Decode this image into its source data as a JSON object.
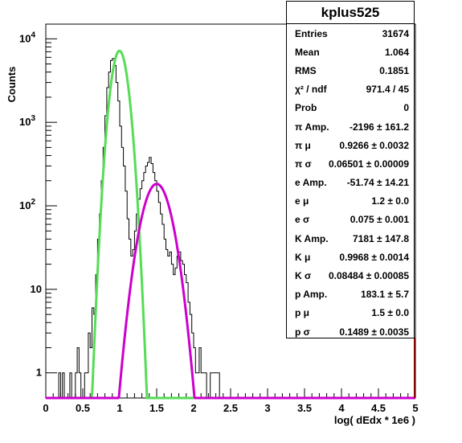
{
  "chart_data": {
    "type": "line",
    "title": "kplus525",
    "xlabel": "log( dEdx * 1e6 )",
    "ylabel": "Counts",
    "xlim": [
      0,
      5
    ],
    "ylim": [
      0.5,
      15000
    ],
    "yscale": "log",
    "x_ticks": [
      "0",
      "0.5",
      "1",
      "1.5",
      "2",
      "2.5",
      "3",
      "3.5",
      "4",
      "4.5",
      "5"
    ],
    "x_tick_values": [
      0,
      0.5,
      1,
      1.5,
      2,
      2.5,
      3,
      3.5,
      4,
      4.5,
      5
    ],
    "y_ticks": [
      {
        "value": 1,
        "base": "1",
        "exp": ""
      },
      {
        "value": 10,
        "base": "10",
        "exp": ""
      },
      {
        "value": 100,
        "base": "10",
        "exp": "2"
      },
      {
        "value": 1000,
        "base": "10",
        "exp": "3"
      },
      {
        "value": 10000,
        "base": "10",
        "exp": "4"
      }
    ],
    "legend": "none",
    "grid": false,
    "series": [
      {
        "color": "#000000",
        "style": "histogram",
        "bin_width": 0.025,
        "x_start": 0.0,
        "values": [
          0,
          0,
          0,
          0,
          0,
          0,
          0,
          1,
          0,
          1,
          0,
          0,
          0,
          1,
          0,
          0,
          1,
          2,
          1,
          0,
          0,
          1,
          1,
          3,
          2,
          6,
          5,
          15,
          40,
          80,
          200,
          500,
          1200,
          2600,
          4000,
          5500,
          5800,
          4800,
          3000,
          1800,
          900,
          500,
          300,
          150,
          70,
          40,
          25,
          30,
          50,
          80,
          120,
          160,
          200,
          250,
          300,
          330,
          380,
          320,
          250,
          200,
          150,
          110,
          80,
          60,
          40,
          30,
          25,
          28,
          20,
          15,
          18,
          25,
          28,
          22,
          20,
          15,
          12,
          7,
          5,
          3,
          2,
          1,
          1,
          2,
          1,
          1,
          1,
          0,
          0,
          1,
          1,
          1,
          1,
          1,
          0,
          0,
          0,
          0,
          0,
          0,
          0,
          0,
          0,
          0,
          0,
          0,
          0,
          0,
          0,
          0,
          0,
          0,
          0,
          0,
          0,
          0,
          0,
          0,
          0,
          0,
          0,
          0,
          0,
          0,
          0,
          0,
          0,
          0,
          0,
          0,
          0,
          0,
          0,
          0,
          0,
          0,
          0,
          0,
          0,
          0,
          0,
          0,
          0,
          0,
          0,
          0,
          0,
          0,
          0,
          0,
          0,
          0,
          0,
          0,
          0,
          0,
          0,
          0,
          0,
          0,
          0,
          0,
          0,
          0,
          0,
          0,
          0,
          0,
          0,
          0,
          0,
          0,
          0,
          0,
          0,
          0,
          0,
          0,
          0,
          0,
          0,
          0,
          0,
          0,
          0,
          0,
          0,
          0,
          0,
          0,
          0,
          0,
          0,
          0,
          0,
          0,
          0,
          0,
          0,
          0
        ]
      },
      {
        "color": "#55dd55",
        "style": "gaussian",
        "amp": 7181,
        "mu": 0.9968,
        "sigma": 0.08484
      },
      {
        "color": "#cc00cc",
        "style": "gaussian",
        "amp": 183.1,
        "mu": 1.5,
        "sigma": 0.1489
      }
    ]
  },
  "stats": {
    "title": "kplus525",
    "rows": [
      {
        "label": "Entries",
        "value": "31674"
      },
      {
        "label": "Mean",
        "value": "1.064"
      },
      {
        "label": "RMS",
        "value": "0.1851"
      },
      {
        "label": "χ² / ndf",
        "value": "971.4 / 45"
      },
      {
        "label": "Prob",
        "value": "0"
      },
      {
        "label": "π Amp.",
        "value": "-2196 ± 161.2"
      },
      {
        "label": "π μ",
        "value": "0.9266 ± 0.0032"
      },
      {
        "label": "π σ",
        "value": "0.06501 ± 0.00009"
      },
      {
        "label": "e Amp.",
        "value": "-51.74 ± 14.21"
      },
      {
        "label": "e μ",
        "value": "1.2 ± 0.0"
      },
      {
        "label": "e σ",
        "value": "0.075 ± 0.001"
      },
      {
        "label": "K Amp.",
        "value": "7181 ± 147.8"
      },
      {
        "label": "K μ",
        "value": "0.9968 ± 0.0014"
      },
      {
        "label": "K σ",
        "value": "0.08484 ± 0.00085"
      },
      {
        "label": "p Amp.",
        "value": "183.1 ± 5.7"
      },
      {
        "label": "p μ",
        "value": "1.5 ± 0.0"
      },
      {
        "label": "p σ",
        "value": "0.1489 ± 0.0035"
      }
    ]
  }
}
